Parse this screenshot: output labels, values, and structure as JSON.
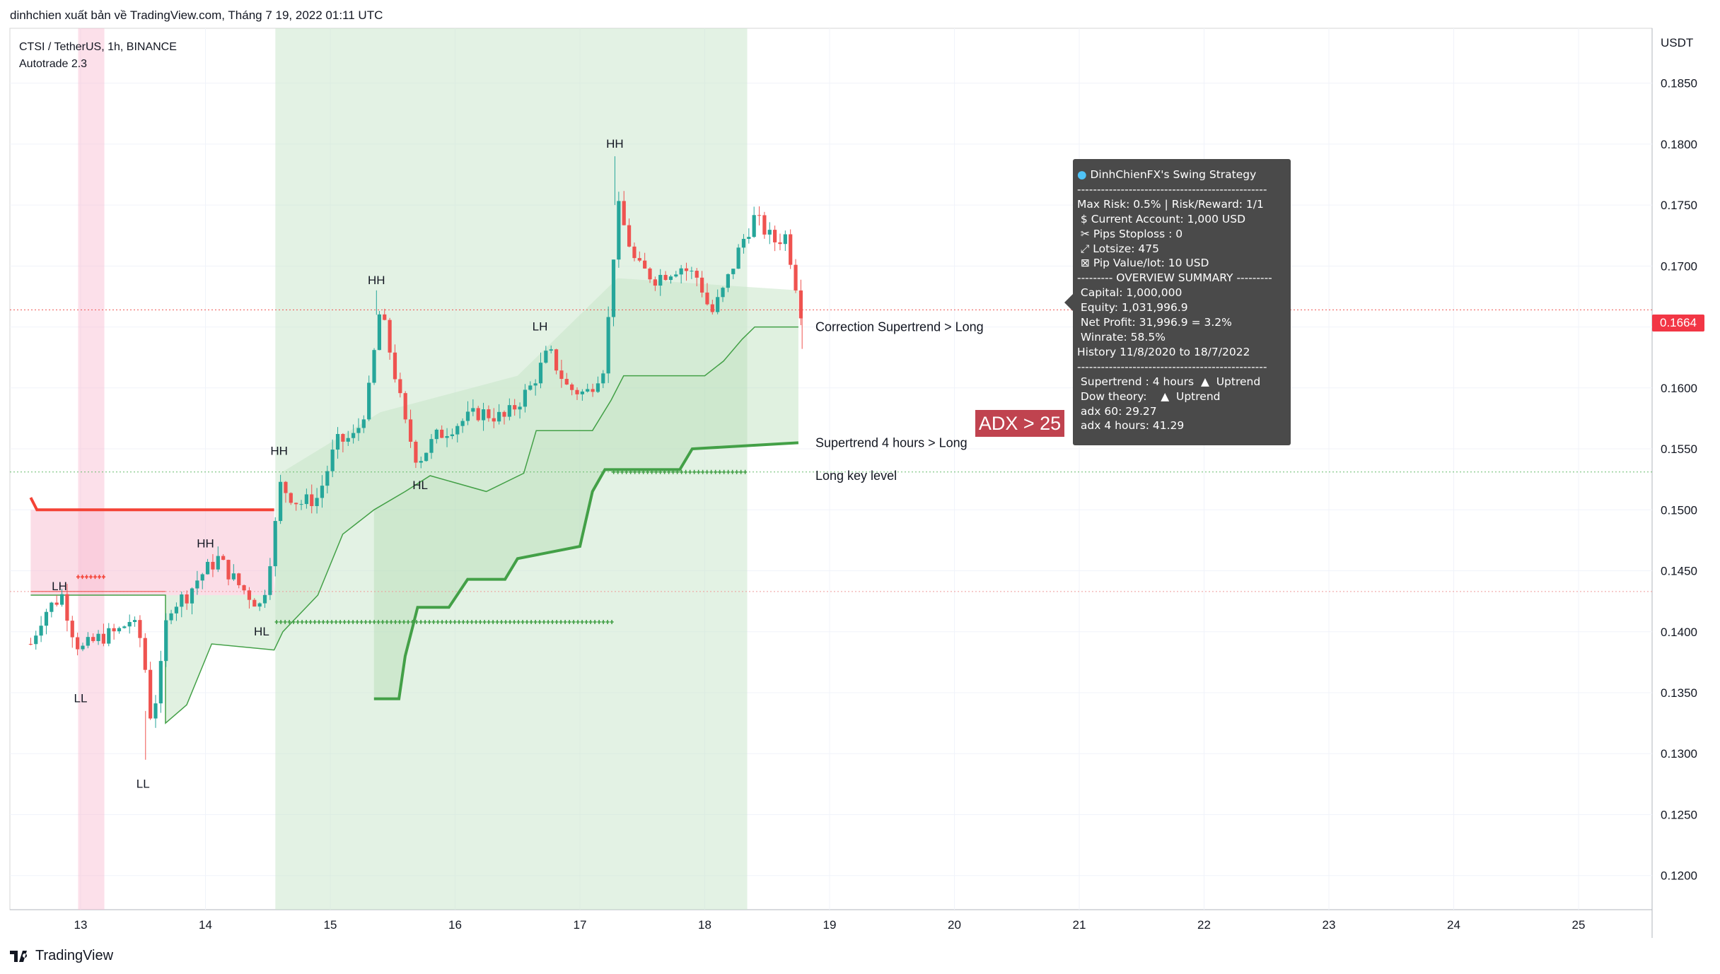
{
  "header": {
    "published": "dinhchien xuất bản về TradingView.com, Tháng 7 19, 2022 01:11 UTC"
  },
  "info": {
    "symbol_line": "CTSI / TetherUS, 1h, BINANCE",
    "indicator_line": "Autotrade 2.3"
  },
  "axis": {
    "currency": "USDT",
    "price_ticks": [
      "0.1850",
      "0.1800",
      "0.1750",
      "0.1700",
      "0.1650",
      "0.1600",
      "0.1550",
      "0.1500",
      "0.1450",
      "0.1400",
      "0.1350",
      "0.1300",
      "0.1250",
      "0.1200"
    ],
    "date_ticks": [
      "13",
      "14",
      "15",
      "16",
      "17",
      "18",
      "19",
      "20",
      "21",
      "22",
      "23",
      "24",
      "25"
    ]
  },
  "current_price": "0.1664",
  "annotations": {
    "correction": "Correction Supertrend  > Long",
    "supertrend4h": "Supertrend 4 hours > Long",
    "key_level": "Long key level",
    "adx_badge": "ADX > 25"
  },
  "swing_labels": [
    "LH",
    "LL",
    "LL",
    "HH",
    "HL",
    "HH",
    "HH",
    "HL",
    "LH",
    "HH"
  ],
  "tooltip": {
    "title": "DinhChienFX's Swing Strategy",
    "lines": [
      "------------------------------------------------",
      "Max Risk: 0.5% | Risk/Reward: 1/1",
      " $ Current Account: 1,000 USD",
      " ✂ Pips Stoploss : 0",
      " ⤢ Lotsize: 475",
      " ⊠ Pip Value/lot: 10 USD",
      "--------- OVERVIEW SUMMARY ---------",
      " Capital: 1,000,000",
      " Equity: 1,031,996.9",
      " Net Profit: 31,996.9 = 3.2%",
      " Winrate: 58.5%",
      "History 11/8/2020 to 18/7/2022",
      "------------------------------------------------",
      " Supertrend : 4 hours  ▲  Uptrend",
      " Dow theory:    ▲  Uptrend",
      " adx 60: 29.27",
      " adx 4 hours: 41.29"
    ]
  },
  "footer": {
    "brand": "TradingView"
  },
  "colors": {
    "up": "#26a69a",
    "down": "#ef5350",
    "green_line": "#43a047",
    "red_line": "#f44336",
    "green_zone": "#c8e6c9",
    "red_zone": "#f8bbd0"
  },
  "chart_data": {
    "type": "candlestick",
    "title": "CTSI / TetherUS, 1h, BINANCE",
    "xlabel": "",
    "ylabel": "USDT",
    "ylim": [
      0.1172,
      0.1895
    ],
    "x_ticks": [
      "13",
      "14",
      "15",
      "16",
      "17",
      "18",
      "19",
      "20",
      "21",
      "22",
      "23",
      "24",
      "25"
    ],
    "current_price": 0.1664,
    "key_levels": [
      {
        "name": "Long key level",
        "value": 0.1531
      },
      {
        "name": "",
        "value": 0.1433
      }
    ],
    "close_path": [
      [
        12.6,
        0.139
      ],
      [
        12.7,
        0.1415
      ],
      [
        12.85,
        0.143
      ],
      [
        12.95,
        0.1395
      ],
      [
        13.0,
        0.1385
      ],
      [
        13.15,
        0.1395
      ],
      [
        13.3,
        0.14
      ],
      [
        13.4,
        0.141
      ],
      [
        13.5,
        0.139
      ],
      [
        13.55,
        0.133
      ],
      [
        13.62,
        0.135
      ],
      [
        13.7,
        0.142
      ],
      [
        13.85,
        0.143
      ],
      [
        13.95,
        0.1445
      ],
      [
        14.1,
        0.146
      ],
      [
        14.25,
        0.144
      ],
      [
        14.45,
        0.142
      ],
      [
        14.55,
        0.148
      ],
      [
        14.6,
        0.152
      ],
      [
        14.75,
        0.1505
      ],
      [
        14.9,
        0.151
      ],
      [
        15.05,
        0.1555
      ],
      [
        15.2,
        0.156
      ],
      [
        15.3,
        0.159
      ],
      [
        15.4,
        0.1665
      ],
      [
        15.5,
        0.162
      ],
      [
        15.6,
        0.157
      ],
      [
        15.7,
        0.154
      ],
      [
        15.85,
        0.156
      ],
      [
        16.0,
        0.157
      ],
      [
        16.2,
        0.158
      ],
      [
        16.4,
        0.1575
      ],
      [
        16.6,
        0.16
      ],
      [
        16.75,
        0.163
      ],
      [
        16.9,
        0.16
      ],
      [
        17.05,
        0.1595
      ],
      [
        17.2,
        0.162
      ],
      [
        17.3,
        0.175
      ],
      [
        17.45,
        0.17
      ],
      [
        17.6,
        0.169
      ],
      [
        17.8,
        0.17
      ],
      [
        17.95,
        0.169
      ],
      [
        18.05,
        0.166
      ],
      [
        18.15,
        0.168
      ],
      [
        18.3,
        0.172
      ],
      [
        18.4,
        0.174
      ],
      [
        18.55,
        0.172
      ],
      [
        18.65,
        0.1725
      ],
      [
        18.72,
        0.169
      ],
      [
        18.77,
        0.1664
      ]
    ],
    "series": [
      {
        "name": "Correction Supertrend",
        "values": [
          [
            12.6,
            0.143
          ],
          [
            13.68,
            0.143
          ],
          [
            13.68,
            0.1325
          ],
          [
            13.85,
            0.134
          ],
          [
            14.05,
            0.139
          ],
          [
            14.55,
            0.1385
          ],
          [
            14.62,
            0.14
          ],
          [
            14.9,
            0.143
          ],
          [
            15.1,
            0.148
          ],
          [
            15.35,
            0.15
          ],
          [
            15.6,
            0.1515
          ],
          [
            15.8,
            0.1528
          ],
          [
            16.25,
            0.1515
          ],
          [
            16.55,
            0.153
          ],
          [
            16.65,
            0.1565
          ],
          [
            17.1,
            0.1565
          ],
          [
            17.25,
            0.159
          ],
          [
            17.35,
            0.161
          ],
          [
            18.0,
            0.161
          ],
          [
            18.15,
            0.1622
          ],
          [
            18.3,
            0.164
          ],
          [
            18.4,
            0.165
          ],
          [
            18.75,
            0.165
          ]
        ]
      },
      {
        "name": "Supertrend 4 hours",
        "values": [
          [
            15.35,
            0.1345
          ],
          [
            15.55,
            0.1345
          ],
          [
            15.6,
            0.138
          ],
          [
            15.7,
            0.142
          ],
          [
            15.95,
            0.142
          ],
          [
            16.1,
            0.1443
          ],
          [
            16.4,
            0.1443
          ],
          [
            16.5,
            0.146
          ],
          [
            17.0,
            0.147
          ],
          [
            17.1,
            0.1515
          ],
          [
            17.2,
            0.1533
          ],
          [
            17.8,
            0.1533
          ],
          [
            17.9,
            0.155
          ],
          [
            18.75,
            0.1555
          ]
        ]
      },
      {
        "name": "Bearish stop",
        "values": [
          [
            12.6,
            0.151
          ],
          [
            12.65,
            0.15
          ],
          [
            14.55,
            0.15
          ]
        ]
      }
    ]
  }
}
